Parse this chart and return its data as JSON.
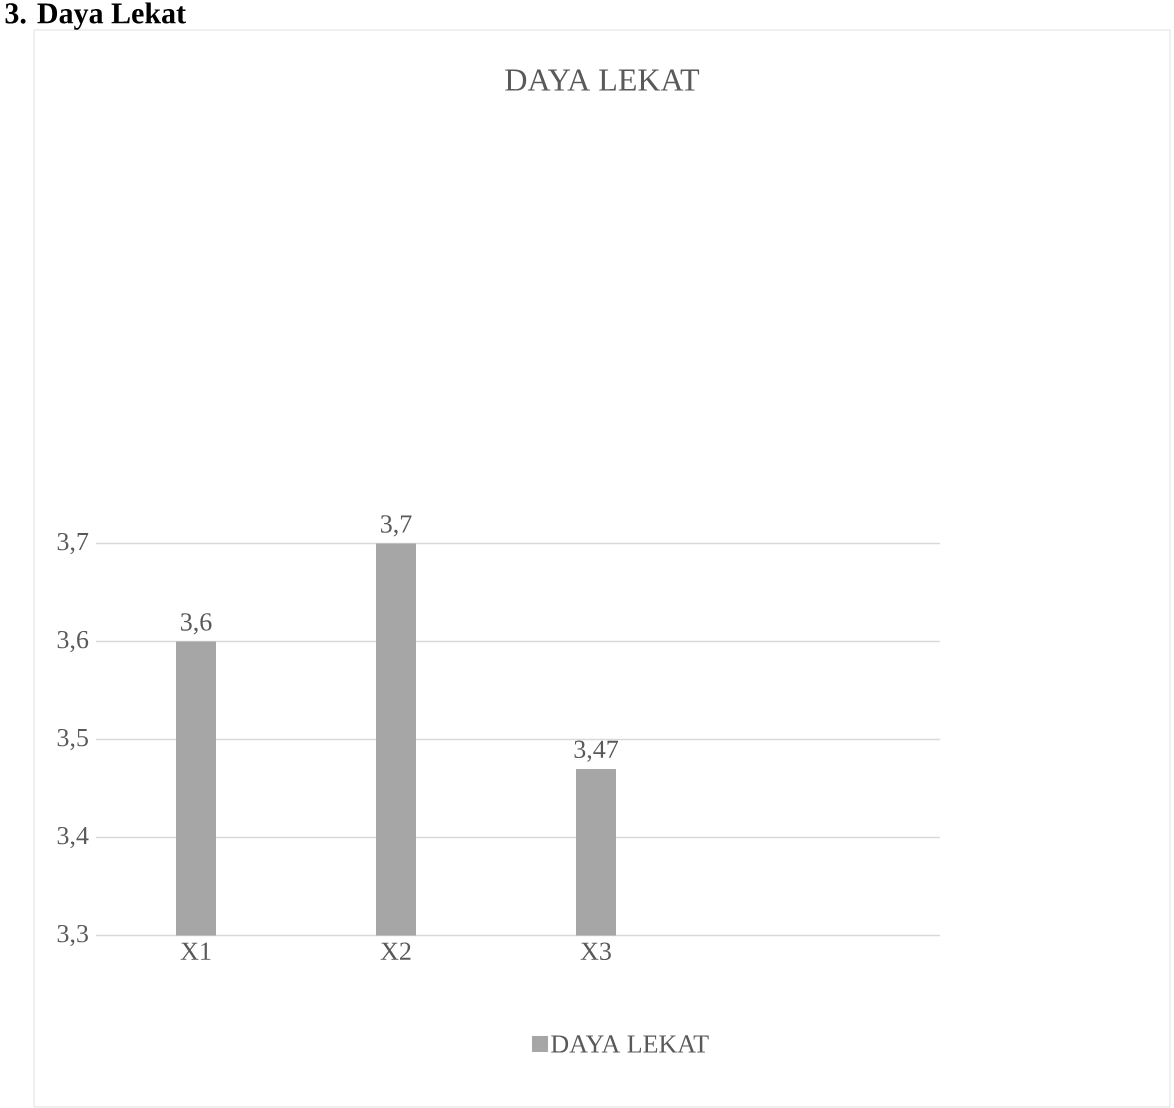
{
  "chart_data": {
    "type": "bar",
    "title": "DAYA LEKAT",
    "annotations": [
      "3.  Daya Lekat"
    ],
    "categories": [
      "X1",
      "X2",
      "X3"
    ],
    "series": [
      {
        "name": "DAYA LEKAT",
        "color": "#a6a6a6",
        "values": [
          3.6,
          3.7,
          3.47
        ],
        "value_labels": [
          "3,6",
          "3,7",
          "3,47"
        ]
      }
    ],
    "ylim": [
      3.3,
      3.7
    ],
    "yticks": [
      {
        "value": 3.3,
        "label": "3,3"
      },
      {
        "value": 3.4,
        "label": "3,4"
      },
      {
        "value": 3.5,
        "label": "3,5"
      },
      {
        "value": 3.6,
        "label": "3,6"
      },
      {
        "value": 3.7,
        "label": "3,7"
      }
    ],
    "grid": "y",
    "legend": "bottom"
  }
}
